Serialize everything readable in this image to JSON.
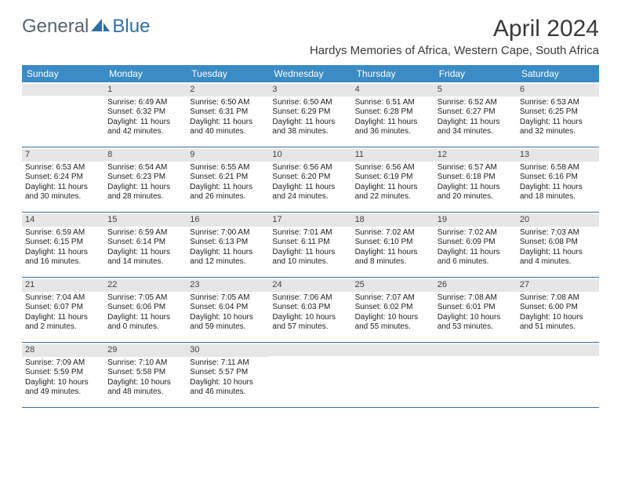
{
  "logo": {
    "text1": "General",
    "text2": "Blue"
  },
  "title": "April 2024",
  "location": "Hardys Memories of Africa, Western Cape, South Africa",
  "colors": {
    "header_bg": "#3b8bc4",
    "header_text": "#ffffff",
    "daynum_bg": "#e6e6e6",
    "week_border": "#3b6ea0",
    "logo_gray": "#5a6570",
    "logo_blue": "#2f6fa8"
  },
  "day_names": [
    "Sunday",
    "Monday",
    "Tuesday",
    "Wednesday",
    "Thursday",
    "Friday",
    "Saturday"
  ],
  "weeks": [
    [
      {
        "n": "",
        "sr": "",
        "ss": "",
        "dl": ""
      },
      {
        "n": "1",
        "sr": "Sunrise: 6:49 AM",
        "ss": "Sunset: 6:32 PM",
        "dl": "Daylight: 11 hours and 42 minutes."
      },
      {
        "n": "2",
        "sr": "Sunrise: 6:50 AM",
        "ss": "Sunset: 6:31 PM",
        "dl": "Daylight: 11 hours and 40 minutes."
      },
      {
        "n": "3",
        "sr": "Sunrise: 6:50 AM",
        "ss": "Sunset: 6:29 PM",
        "dl": "Daylight: 11 hours and 38 minutes."
      },
      {
        "n": "4",
        "sr": "Sunrise: 6:51 AM",
        "ss": "Sunset: 6:28 PM",
        "dl": "Daylight: 11 hours and 36 minutes."
      },
      {
        "n": "5",
        "sr": "Sunrise: 6:52 AM",
        "ss": "Sunset: 6:27 PM",
        "dl": "Daylight: 11 hours and 34 minutes."
      },
      {
        "n": "6",
        "sr": "Sunrise: 6:53 AM",
        "ss": "Sunset: 6:25 PM",
        "dl": "Daylight: 11 hours and 32 minutes."
      }
    ],
    [
      {
        "n": "7",
        "sr": "Sunrise: 6:53 AM",
        "ss": "Sunset: 6:24 PM",
        "dl": "Daylight: 11 hours and 30 minutes."
      },
      {
        "n": "8",
        "sr": "Sunrise: 6:54 AM",
        "ss": "Sunset: 6:23 PM",
        "dl": "Daylight: 11 hours and 28 minutes."
      },
      {
        "n": "9",
        "sr": "Sunrise: 6:55 AM",
        "ss": "Sunset: 6:21 PM",
        "dl": "Daylight: 11 hours and 26 minutes."
      },
      {
        "n": "10",
        "sr": "Sunrise: 6:56 AM",
        "ss": "Sunset: 6:20 PM",
        "dl": "Daylight: 11 hours and 24 minutes."
      },
      {
        "n": "11",
        "sr": "Sunrise: 6:56 AM",
        "ss": "Sunset: 6:19 PM",
        "dl": "Daylight: 11 hours and 22 minutes."
      },
      {
        "n": "12",
        "sr": "Sunrise: 6:57 AM",
        "ss": "Sunset: 6:18 PM",
        "dl": "Daylight: 11 hours and 20 minutes."
      },
      {
        "n": "13",
        "sr": "Sunrise: 6:58 AM",
        "ss": "Sunset: 6:16 PM",
        "dl": "Daylight: 11 hours and 18 minutes."
      }
    ],
    [
      {
        "n": "14",
        "sr": "Sunrise: 6:59 AM",
        "ss": "Sunset: 6:15 PM",
        "dl": "Daylight: 11 hours and 16 minutes."
      },
      {
        "n": "15",
        "sr": "Sunrise: 6:59 AM",
        "ss": "Sunset: 6:14 PM",
        "dl": "Daylight: 11 hours and 14 minutes."
      },
      {
        "n": "16",
        "sr": "Sunrise: 7:00 AM",
        "ss": "Sunset: 6:13 PM",
        "dl": "Daylight: 11 hours and 12 minutes."
      },
      {
        "n": "17",
        "sr": "Sunrise: 7:01 AM",
        "ss": "Sunset: 6:11 PM",
        "dl": "Daylight: 11 hours and 10 minutes."
      },
      {
        "n": "18",
        "sr": "Sunrise: 7:02 AM",
        "ss": "Sunset: 6:10 PM",
        "dl": "Daylight: 11 hours and 8 minutes."
      },
      {
        "n": "19",
        "sr": "Sunrise: 7:02 AM",
        "ss": "Sunset: 6:09 PM",
        "dl": "Daylight: 11 hours and 6 minutes."
      },
      {
        "n": "20",
        "sr": "Sunrise: 7:03 AM",
        "ss": "Sunset: 6:08 PM",
        "dl": "Daylight: 11 hours and 4 minutes."
      }
    ],
    [
      {
        "n": "21",
        "sr": "Sunrise: 7:04 AM",
        "ss": "Sunset: 6:07 PM",
        "dl": "Daylight: 11 hours and 2 minutes."
      },
      {
        "n": "22",
        "sr": "Sunrise: 7:05 AM",
        "ss": "Sunset: 6:06 PM",
        "dl": "Daylight: 11 hours and 0 minutes."
      },
      {
        "n": "23",
        "sr": "Sunrise: 7:05 AM",
        "ss": "Sunset: 6:04 PM",
        "dl": "Daylight: 10 hours and 59 minutes."
      },
      {
        "n": "24",
        "sr": "Sunrise: 7:06 AM",
        "ss": "Sunset: 6:03 PM",
        "dl": "Daylight: 10 hours and 57 minutes."
      },
      {
        "n": "25",
        "sr": "Sunrise: 7:07 AM",
        "ss": "Sunset: 6:02 PM",
        "dl": "Daylight: 10 hours and 55 minutes."
      },
      {
        "n": "26",
        "sr": "Sunrise: 7:08 AM",
        "ss": "Sunset: 6:01 PM",
        "dl": "Daylight: 10 hours and 53 minutes."
      },
      {
        "n": "27",
        "sr": "Sunrise: 7:08 AM",
        "ss": "Sunset: 6:00 PM",
        "dl": "Daylight: 10 hours and 51 minutes."
      }
    ],
    [
      {
        "n": "28",
        "sr": "Sunrise: 7:09 AM",
        "ss": "Sunset: 5:59 PM",
        "dl": "Daylight: 10 hours and 49 minutes."
      },
      {
        "n": "29",
        "sr": "Sunrise: 7:10 AM",
        "ss": "Sunset: 5:58 PM",
        "dl": "Daylight: 10 hours and 48 minutes."
      },
      {
        "n": "30",
        "sr": "Sunrise: 7:11 AM",
        "ss": "Sunset: 5:57 PM",
        "dl": "Daylight: 10 hours and 46 minutes."
      },
      {
        "n": "",
        "sr": "",
        "ss": "",
        "dl": ""
      },
      {
        "n": "",
        "sr": "",
        "ss": "",
        "dl": ""
      },
      {
        "n": "",
        "sr": "",
        "ss": "",
        "dl": ""
      },
      {
        "n": "",
        "sr": "",
        "ss": "",
        "dl": ""
      }
    ]
  ]
}
